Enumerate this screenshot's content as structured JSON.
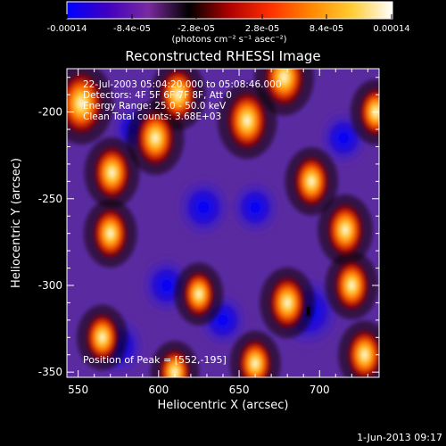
{
  "colorbar": {
    "stops": [
      "#0000ff",
      "#4000c0",
      "#7a2aa0",
      "#000000",
      "#b00000",
      "#ff3000",
      "#ff8800",
      "#ffcc33",
      "#ffffff"
    ],
    "ticks": [
      "-0.00014",
      "-8.4e-05",
      "-2.8e-05",
      "2.8e-05",
      "8.4e-05",
      "0.00014"
    ],
    "unit_label": "(photons cm⁻² s⁻¹ asec⁻²)"
  },
  "chart_data": {
    "type": "heatmap",
    "title": "Reconstructed RHESSI Image",
    "xlabel": "Heliocentric X (arcsec)",
    "ylabel": "Heliocentric Y (arcsec)",
    "xlim": [
      543,
      737
    ],
    "ylim": [
      -353,
      -175
    ],
    "xticks": [
      "550",
      "600",
      "650",
      "700"
    ],
    "yticks": [
      "-200",
      "-250",
      "-300",
      "-350"
    ],
    "zlim": [
      -0.00014,
      0.00014
    ],
    "annotations": [
      "22-Jul-2003 05:04:20.000 to 05:08:46.000",
      "Detectors: 4F 5F 6F 7F 8F, Att 0",
      "Energy Range: 25.0 - 50.0 keV",
      "Clean    Total counts: 3.68E+03"
    ],
    "peak": {
      "label": "Position of Peak = [552,-195]",
      "x": 552,
      "y": -195
    },
    "bright_blobs": [
      {
        "x": 552,
        "y": -195,
        "value": 0.00014
      },
      {
        "x": 571,
        "y": -235,
        "value": 0.0001
      },
      {
        "x": 598,
        "y": -215,
        "value": 0.00011
      },
      {
        "x": 612,
        "y": -190,
        "value": 0.0001
      },
      {
        "x": 655,
        "y": -205,
        "value": 0.00012
      },
      {
        "x": 678,
        "y": -180,
        "value": 0.00012
      },
      {
        "x": 695,
        "y": -240,
        "value": 9e-05
      },
      {
        "x": 716,
        "y": -268,
        "value": 0.0001
      },
      {
        "x": 720,
        "y": -300,
        "value": 9e-05
      },
      {
        "x": 680,
        "y": -310,
        "value": 0.0001
      },
      {
        "x": 625,
        "y": -305,
        "value": 7e-05
      },
      {
        "x": 570,
        "y": -270,
        "value": 9e-05
      },
      {
        "x": 565,
        "y": -330,
        "value": 8e-05
      },
      {
        "x": 610,
        "y": -350,
        "value": 7e-05
      },
      {
        "x": 660,
        "y": -345,
        "value": 8e-05
      },
      {
        "x": 728,
        "y": -340,
        "value": 9e-05
      },
      {
        "x": 735,
        "y": -200,
        "value": 8e-05
      }
    ],
    "dark_blobs": [
      {
        "x": 693,
        "y": -315,
        "value": -0.00014
      },
      {
        "x": 575,
        "y": -335,
        "value": -9e-05
      },
      {
        "x": 628,
        "y": -255,
        "value": -9e-05
      },
      {
        "x": 605,
        "y": -300,
        "value": -8e-05
      },
      {
        "x": 660,
        "y": -255,
        "value": -7e-05
      },
      {
        "x": 715,
        "y": -215,
        "value": -7e-05
      },
      {
        "x": 585,
        "y": -210,
        "value": -6e-05
      },
      {
        "x": 640,
        "y": -320,
        "value": -7e-05
      }
    ]
  },
  "timestamp": "1-Jun-2013 09:17"
}
